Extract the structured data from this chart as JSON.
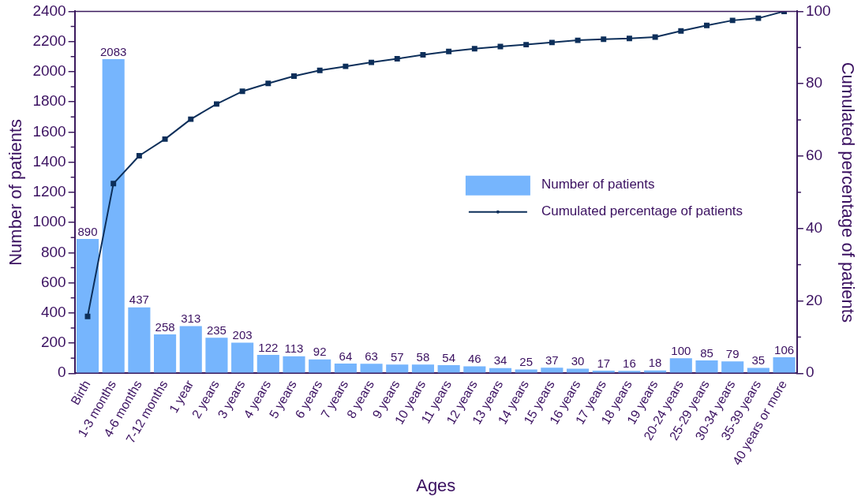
{
  "chart_data": {
    "type": "bar",
    "xlabel": "Ages",
    "ylabel": "Number of patients",
    "y2label": "Cumulated percentage of patients",
    "categories": [
      "Birth",
      "1-3 months",
      "4-6 months",
      "7-12 months",
      "1 year",
      "2 years",
      "3 years",
      "4 years",
      "5 years",
      "6 years",
      "7 years",
      "8 years",
      "9 years",
      "10 years",
      "11 years",
      "12 years",
      "13 years",
      "14 years",
      "15 years",
      "16 years",
      "17 years",
      "18 years",
      "19 years",
      "20-24 years",
      "25-29 years",
      "30-34 years",
      "35-39 years",
      "40 years or more"
    ],
    "series": [
      {
        "name": "Number of patients",
        "color": "#76b5fd",
        "values": [
          890,
          2083,
          437,
          258,
          313,
          235,
          203,
          122,
          113,
          92,
          64,
          63,
          57,
          58,
          54,
          46,
          34,
          25,
          37,
          30,
          17,
          16,
          18,
          100,
          85,
          79,
          35,
          106
        ],
        "value_labels": [
          "890",
          "2083",
          "437",
          "258",
          "313",
          "235",
          "203",
          "122",
          "113",
          "92",
          "64",
          "63",
          "57",
          "58",
          "54",
          "46",
          "34",
          "25",
          "37",
          "30",
          "17",
          "16",
          "18",
          "100",
          "85",
          "79",
          "35",
          "106"
        ]
      },
      {
        "name": "Cumulated percentage of patients",
        "type": "line",
        "axis": "y2",
        "color": "#0d2f5a",
        "values": [
          15.7,
          52.4,
          60.1,
          64.7,
          70.2,
          74.4,
          77.9,
          80.1,
          82.1,
          83.7,
          84.8,
          85.9,
          86.9,
          88.0,
          88.9,
          89.7,
          90.3,
          90.8,
          91.4,
          92.0,
          92.3,
          92.5,
          92.9,
          94.6,
          96.1,
          97.5,
          98.1,
          100
        ]
      }
    ],
    "ylim": [
      0,
      2400
    ],
    "yticks": [
      0,
      200,
      400,
      600,
      800,
      1000,
      1200,
      1400,
      1600,
      1800,
      2000,
      2200,
      2400
    ],
    "y2lim": [
      0,
      100
    ],
    "y2ticks": [
      0,
      20,
      40,
      60,
      80,
      100
    ],
    "grid": false,
    "legend": "right",
    "marker": "square",
    "line_style": "solid"
  }
}
